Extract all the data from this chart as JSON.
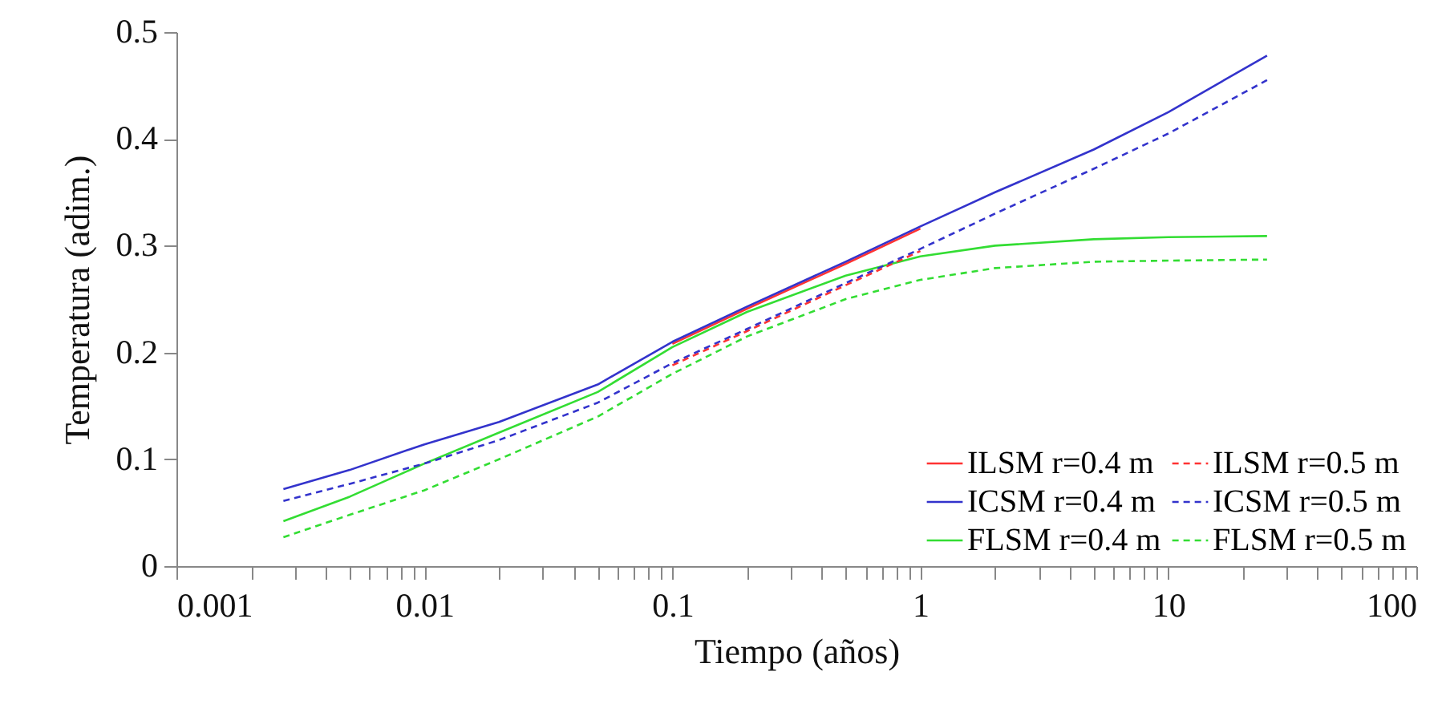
{
  "chart_data": {
    "type": "line",
    "xlabel": "Tiempo (años)",
    "ylabel": "Temperatura (adim.)",
    "log": "x",
    "legend": "bottom right",
    "grid": false,
    "marker": "none",
    "x": [
      0.0027,
      0.005,
      0.01,
      0.02,
      0.05,
      0.1,
      0.2,
      0.5,
      1,
      2,
      5,
      10,
      25
    ],
    "xlim": [
      0.001,
      100
    ],
    "ylim": [
      0,
      0.5
    ],
    "yticks": [
      0,
      0.1,
      0.2,
      0.3,
      0.4,
      0.5
    ],
    "xticks": [
      0.001,
      {
        "value": 0.002,
        "label": null
      },
      {
        "value": 0.003,
        "label": null
      },
      {
        "value": 0.004,
        "label": null
      },
      {
        "value": 0.005,
        "label": null
      },
      {
        "value": 0.006,
        "label": null
      },
      {
        "value": 0.007,
        "label": null
      },
      {
        "value": 0.008,
        "label": null
      },
      {
        "value": 0.009,
        "label": null
      },
      0.01,
      {
        "value": 0.02,
        "label": null
      },
      {
        "value": 0.03,
        "label": null
      },
      {
        "value": 0.04,
        "label": null
      },
      {
        "value": 0.05,
        "label": null
      },
      {
        "value": 0.06,
        "label": null
      },
      {
        "value": 0.07,
        "label": null
      },
      {
        "value": 0.08,
        "label": null
      },
      {
        "value": 0.09,
        "label": null
      },
      0.1,
      {
        "value": 0.2,
        "label": null
      },
      {
        "value": 0.3,
        "label": null
      },
      {
        "value": 0.4,
        "label": null
      },
      {
        "value": 0.5,
        "label": null
      },
      {
        "value": 0.6,
        "label": null
      },
      {
        "value": 0.7,
        "label": null
      },
      {
        "value": 0.8,
        "label": null
      },
      {
        "value": 0.9,
        "label": null
      },
      1,
      {
        "value": 2,
        "label": null
      },
      {
        "value": 3,
        "label": null
      },
      {
        "value": 4,
        "label": null
      },
      {
        "value": 5,
        "label": null
      },
      {
        "value": 6,
        "label": null
      },
      {
        "value": 7,
        "label": null
      },
      {
        "value": 8,
        "label": null
      },
      {
        "value": 9,
        "label": null
      },
      10,
      {
        "value": 20,
        "label": null
      },
      {
        "value": 30,
        "label": null
      },
      {
        "value": 40,
        "label": null
      },
      {
        "value": 50,
        "label": null
      },
      {
        "value": 60,
        "label": null
      },
      {
        "value": 70,
        "label": null
      },
      {
        "value": 80,
        "label": null
      },
      {
        "value": 90,
        "label": null
      },
      100
    ],
    "series": [
      {
        "name": "ILSM r=0.4 m",
        "color": "#ff3333",
        "line_style": "solid",
        "values": [
          null,
          null,
          null,
          null,
          null,
          0.208,
          0.241,
          0.283,
          0.316,
          null,
          null,
          null,
          null
        ]
      },
      {
        "name": "ICSM r=0.4 m",
        "color": "#3333cc",
        "line_style": "solid",
        "values": [
          0.072,
          0.09,
          0.114,
          0.135,
          0.17,
          0.21,
          0.243,
          0.285,
          0.318,
          0.35,
          0.39,
          0.425,
          0.478
        ]
      },
      {
        "name": "FLSM r=0.4 m",
        "color": "#33dd33",
        "line_style": "solid",
        "values": [
          0.042,
          0.065,
          0.096,
          0.125,
          0.163,
          0.205,
          0.238,
          0.272,
          0.29,
          0.3,
          0.306,
          0.308,
          0.309
        ]
      },
      {
        "name": "ILSM r=0.5 m",
        "color": "#ff3333",
        "line_style": "dashed",
        "values": [
          null,
          null,
          null,
          null,
          null,
          0.188,
          0.22,
          0.263,
          0.295,
          null,
          null,
          null,
          null
        ]
      },
      {
        "name": "ICSM r=0.5 m",
        "color": "#3333cc",
        "line_style": "dashed",
        "values": [
          0.061,
          0.077,
          0.096,
          0.118,
          0.153,
          0.19,
          0.222,
          0.265,
          0.297,
          0.33,
          0.372,
          0.405,
          0.455
        ]
      },
      {
        "name": "FLSM r=0.5 m",
        "color": "#33dd33",
        "line_style": "dashed",
        "values": [
          0.027,
          0.048,
          0.071,
          0.1,
          0.14,
          0.18,
          0.215,
          0.25,
          0.268,
          0.279,
          0.285,
          0.286,
          0.287
        ]
      }
    ]
  }
}
